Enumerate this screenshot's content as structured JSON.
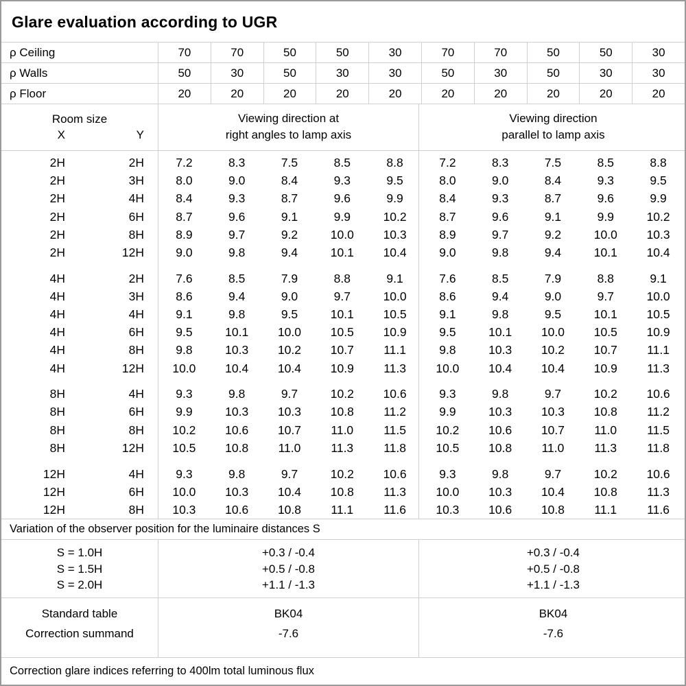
{
  "title": "Glare evaluation according to UGR",
  "reflectance": {
    "rows": [
      {
        "label": "ρ Ceiling",
        "values": [
          "70",
          "70",
          "50",
          "50",
          "30",
          "70",
          "70",
          "50",
          "50",
          "30"
        ]
      },
      {
        "label": "ρ Walls",
        "values": [
          "50",
          "30",
          "50",
          "30",
          "30",
          "50",
          "30",
          "50",
          "30",
          "30"
        ]
      },
      {
        "label": "ρ Floor",
        "values": [
          "20",
          "20",
          "20",
          "20",
          "20",
          "20",
          "20",
          "20",
          "20",
          "20"
        ]
      }
    ]
  },
  "header": {
    "room_size": "Room size",
    "x_label": "X",
    "y_label": "Y",
    "right_angles_line1": "Viewing direction at",
    "right_angles_line2": "right angles to lamp axis",
    "parallel_line1": "Viewing direction",
    "parallel_line2": "parallel to lamp axis"
  },
  "ugr_blocks": [
    {
      "rows": [
        {
          "x": "2H",
          "y": "2H",
          "right_angles": [
            "7.2",
            "8.3",
            "7.5",
            "8.5",
            "8.8"
          ],
          "parallel": [
            "7.2",
            "8.3",
            "7.5",
            "8.5",
            "8.8"
          ]
        },
        {
          "x": "2H",
          "y": "3H",
          "right_angles": [
            "8.0",
            "9.0",
            "8.4",
            "9.3",
            "9.5"
          ],
          "parallel": [
            "8.0",
            "9.0",
            "8.4",
            "9.3",
            "9.5"
          ]
        },
        {
          "x": "2H",
          "y": "4H",
          "right_angles": [
            "8.4",
            "9.3",
            "8.7",
            "9.6",
            "9.9"
          ],
          "parallel": [
            "8.4",
            "9.3",
            "8.7",
            "9.6",
            "9.9"
          ]
        },
        {
          "x": "2H",
          "y": "6H",
          "right_angles": [
            "8.7",
            "9.6",
            "9.1",
            "9.9",
            "10.2"
          ],
          "parallel": [
            "8.7",
            "9.6",
            "9.1",
            "9.9",
            "10.2"
          ]
        },
        {
          "x": "2H",
          "y": "8H",
          "right_angles": [
            "8.9",
            "9.7",
            "9.2",
            "10.0",
            "10.3"
          ],
          "parallel": [
            "8.9",
            "9.7",
            "9.2",
            "10.0",
            "10.3"
          ]
        },
        {
          "x": "2H",
          "y": "12H",
          "right_angles": [
            "9.0",
            "9.8",
            "9.4",
            "10.1",
            "10.4"
          ],
          "parallel": [
            "9.0",
            "9.8",
            "9.4",
            "10.1",
            "10.4"
          ]
        }
      ]
    },
    {
      "rows": [
        {
          "x": "4H",
          "y": "2H",
          "right_angles": [
            "7.6",
            "8.5",
            "7.9",
            "8.8",
            "9.1"
          ],
          "parallel": [
            "7.6",
            "8.5",
            "7.9",
            "8.8",
            "9.1"
          ]
        },
        {
          "x": "4H",
          "y": "3H",
          "right_angles": [
            "8.6",
            "9.4",
            "9.0",
            "9.7",
            "10.0"
          ],
          "parallel": [
            "8.6",
            "9.4",
            "9.0",
            "9.7",
            "10.0"
          ]
        },
        {
          "x": "4H",
          "y": "4H",
          "right_angles": [
            "9.1",
            "9.8",
            "9.5",
            "10.1",
            "10.5"
          ],
          "parallel": [
            "9.1",
            "9.8",
            "9.5",
            "10.1",
            "10.5"
          ]
        },
        {
          "x": "4H",
          "y": "6H",
          "right_angles": [
            "9.5",
            "10.1",
            "10.0",
            "10.5",
            "10.9"
          ],
          "parallel": [
            "9.5",
            "10.1",
            "10.0",
            "10.5",
            "10.9"
          ]
        },
        {
          "x": "4H",
          "y": "8H",
          "right_angles": [
            "9.8",
            "10.3",
            "10.2",
            "10.7",
            "11.1"
          ],
          "parallel": [
            "9.8",
            "10.3",
            "10.2",
            "10.7",
            "11.1"
          ]
        },
        {
          "x": "4H",
          "y": "12H",
          "right_angles": [
            "10.0",
            "10.4",
            "10.4",
            "10.9",
            "11.3"
          ],
          "parallel": [
            "10.0",
            "10.4",
            "10.4",
            "10.9",
            "11.3"
          ]
        }
      ]
    },
    {
      "rows": [
        {
          "x": "8H",
          "y": "4H",
          "right_angles": [
            "9.3",
            "9.8",
            "9.7",
            "10.2",
            "10.6"
          ],
          "parallel": [
            "9.3",
            "9.8",
            "9.7",
            "10.2",
            "10.6"
          ]
        },
        {
          "x": "8H",
          "y": "6H",
          "right_angles": [
            "9.9",
            "10.3",
            "10.3",
            "10.8",
            "11.2"
          ],
          "parallel": [
            "9.9",
            "10.3",
            "10.3",
            "10.8",
            "11.2"
          ]
        },
        {
          "x": "8H",
          "y": "8H",
          "right_angles": [
            "10.2",
            "10.6",
            "10.7",
            "11.0",
            "11.5"
          ],
          "parallel": [
            "10.2",
            "10.6",
            "10.7",
            "11.0",
            "11.5"
          ]
        },
        {
          "x": "8H",
          "y": "12H",
          "right_angles": [
            "10.5",
            "10.8",
            "11.0",
            "11.3",
            "11.8"
          ],
          "parallel": [
            "10.5",
            "10.8",
            "11.0",
            "11.3",
            "11.8"
          ]
        }
      ]
    },
    {
      "rows": [
        {
          "x": "12H",
          "y": "4H",
          "right_angles": [
            "9.3",
            "9.8",
            "9.7",
            "10.2",
            "10.6"
          ],
          "parallel": [
            "9.3",
            "9.8",
            "9.7",
            "10.2",
            "10.6"
          ]
        },
        {
          "x": "12H",
          "y": "6H",
          "right_angles": [
            "10.0",
            "10.3",
            "10.4",
            "10.8",
            "11.3"
          ],
          "parallel": [
            "10.0",
            "10.3",
            "10.4",
            "10.8",
            "11.3"
          ]
        },
        {
          "x": "12H",
          "y": "8H",
          "right_angles": [
            "10.3",
            "10.6",
            "10.8",
            "11.1",
            "11.6"
          ],
          "parallel": [
            "10.3",
            "10.6",
            "10.8",
            "11.1",
            "11.6"
          ]
        }
      ]
    }
  ],
  "variation_note": "Variation of the observer position for the luminaire distances S",
  "spacing_rows": [
    {
      "label": "S = 1.0H",
      "right_angles": "+0.3 / -0.4",
      "parallel": "+0.3 / -0.4"
    },
    {
      "label": "S = 1.5H",
      "right_angles": "+0.5 / -0.8",
      "parallel": "+0.5 / -0.8"
    },
    {
      "label": "S = 2.0H",
      "right_angles": "+1.1 / -1.3",
      "parallel": "+1.1 / -1.3"
    }
  ],
  "standard": {
    "table_label": "Standard table",
    "summand_label": "Correction summand",
    "right_angles": {
      "table": "BK04",
      "summand": "-7.6"
    },
    "parallel": {
      "table": "BK04",
      "summand": "-7.6"
    }
  },
  "footer_note": "Correction glare indices referring to 400lm total luminous flux"
}
